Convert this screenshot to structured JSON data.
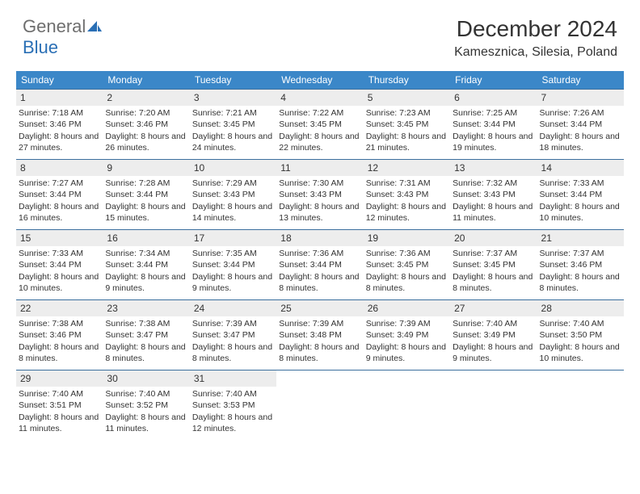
{
  "logo": {
    "word1": "General",
    "word2": "Blue"
  },
  "title": "December 2024",
  "location": "Kamesznica, Silesia, Poland",
  "colors": {
    "header_bg": "#3b87c8",
    "header_fg": "#ffffff",
    "row_border": "#3b6f9e",
    "daynum_bg": "#ededed",
    "text": "#333333",
    "logo_gray": "#6e6e6e",
    "logo_blue": "#2a6fb5"
  },
  "dows": [
    "Sunday",
    "Monday",
    "Tuesday",
    "Wednesday",
    "Thursday",
    "Friday",
    "Saturday"
  ],
  "labels": {
    "sunrise": "Sunrise:",
    "sunset": "Sunset:",
    "daylight": "Daylight:"
  },
  "days": [
    {
      "n": 1,
      "sr": "7:18 AM",
      "ss": "3:46 PM",
      "dl": "8 hours and 27 minutes."
    },
    {
      "n": 2,
      "sr": "7:20 AM",
      "ss": "3:46 PM",
      "dl": "8 hours and 26 minutes."
    },
    {
      "n": 3,
      "sr": "7:21 AM",
      "ss": "3:45 PM",
      "dl": "8 hours and 24 minutes."
    },
    {
      "n": 4,
      "sr": "7:22 AM",
      "ss": "3:45 PM",
      "dl": "8 hours and 22 minutes."
    },
    {
      "n": 5,
      "sr": "7:23 AM",
      "ss": "3:45 PM",
      "dl": "8 hours and 21 minutes."
    },
    {
      "n": 6,
      "sr": "7:25 AM",
      "ss": "3:44 PM",
      "dl": "8 hours and 19 minutes."
    },
    {
      "n": 7,
      "sr": "7:26 AM",
      "ss": "3:44 PM",
      "dl": "8 hours and 18 minutes."
    },
    {
      "n": 8,
      "sr": "7:27 AM",
      "ss": "3:44 PM",
      "dl": "8 hours and 16 minutes."
    },
    {
      "n": 9,
      "sr": "7:28 AM",
      "ss": "3:44 PM",
      "dl": "8 hours and 15 minutes."
    },
    {
      "n": 10,
      "sr": "7:29 AM",
      "ss": "3:43 PM",
      "dl": "8 hours and 14 minutes."
    },
    {
      "n": 11,
      "sr": "7:30 AM",
      "ss": "3:43 PM",
      "dl": "8 hours and 13 minutes."
    },
    {
      "n": 12,
      "sr": "7:31 AM",
      "ss": "3:43 PM",
      "dl": "8 hours and 12 minutes."
    },
    {
      "n": 13,
      "sr": "7:32 AM",
      "ss": "3:43 PM",
      "dl": "8 hours and 11 minutes."
    },
    {
      "n": 14,
      "sr": "7:33 AM",
      "ss": "3:44 PM",
      "dl": "8 hours and 10 minutes."
    },
    {
      "n": 15,
      "sr": "7:33 AM",
      "ss": "3:44 PM",
      "dl": "8 hours and 10 minutes."
    },
    {
      "n": 16,
      "sr": "7:34 AM",
      "ss": "3:44 PM",
      "dl": "8 hours and 9 minutes."
    },
    {
      "n": 17,
      "sr": "7:35 AM",
      "ss": "3:44 PM",
      "dl": "8 hours and 9 minutes."
    },
    {
      "n": 18,
      "sr": "7:36 AM",
      "ss": "3:44 PM",
      "dl": "8 hours and 8 minutes."
    },
    {
      "n": 19,
      "sr": "7:36 AM",
      "ss": "3:45 PM",
      "dl": "8 hours and 8 minutes."
    },
    {
      "n": 20,
      "sr": "7:37 AM",
      "ss": "3:45 PM",
      "dl": "8 hours and 8 minutes."
    },
    {
      "n": 21,
      "sr": "7:37 AM",
      "ss": "3:46 PM",
      "dl": "8 hours and 8 minutes."
    },
    {
      "n": 22,
      "sr": "7:38 AM",
      "ss": "3:46 PM",
      "dl": "8 hours and 8 minutes."
    },
    {
      "n": 23,
      "sr": "7:38 AM",
      "ss": "3:47 PM",
      "dl": "8 hours and 8 minutes."
    },
    {
      "n": 24,
      "sr": "7:39 AM",
      "ss": "3:47 PM",
      "dl": "8 hours and 8 minutes."
    },
    {
      "n": 25,
      "sr": "7:39 AM",
      "ss": "3:48 PM",
      "dl": "8 hours and 8 minutes."
    },
    {
      "n": 26,
      "sr": "7:39 AM",
      "ss": "3:49 PM",
      "dl": "8 hours and 9 minutes."
    },
    {
      "n": 27,
      "sr": "7:40 AM",
      "ss": "3:49 PM",
      "dl": "8 hours and 9 minutes."
    },
    {
      "n": 28,
      "sr": "7:40 AM",
      "ss": "3:50 PM",
      "dl": "8 hours and 10 minutes."
    },
    {
      "n": 29,
      "sr": "7:40 AM",
      "ss": "3:51 PM",
      "dl": "8 hours and 11 minutes."
    },
    {
      "n": 30,
      "sr": "7:40 AM",
      "ss": "3:52 PM",
      "dl": "8 hours and 11 minutes."
    },
    {
      "n": 31,
      "sr": "7:40 AM",
      "ss": "3:53 PM",
      "dl": "8 hours and 12 minutes."
    }
  ],
  "grid": {
    "weeks": 5,
    "first_dow": 0,
    "num_days": 31
  }
}
